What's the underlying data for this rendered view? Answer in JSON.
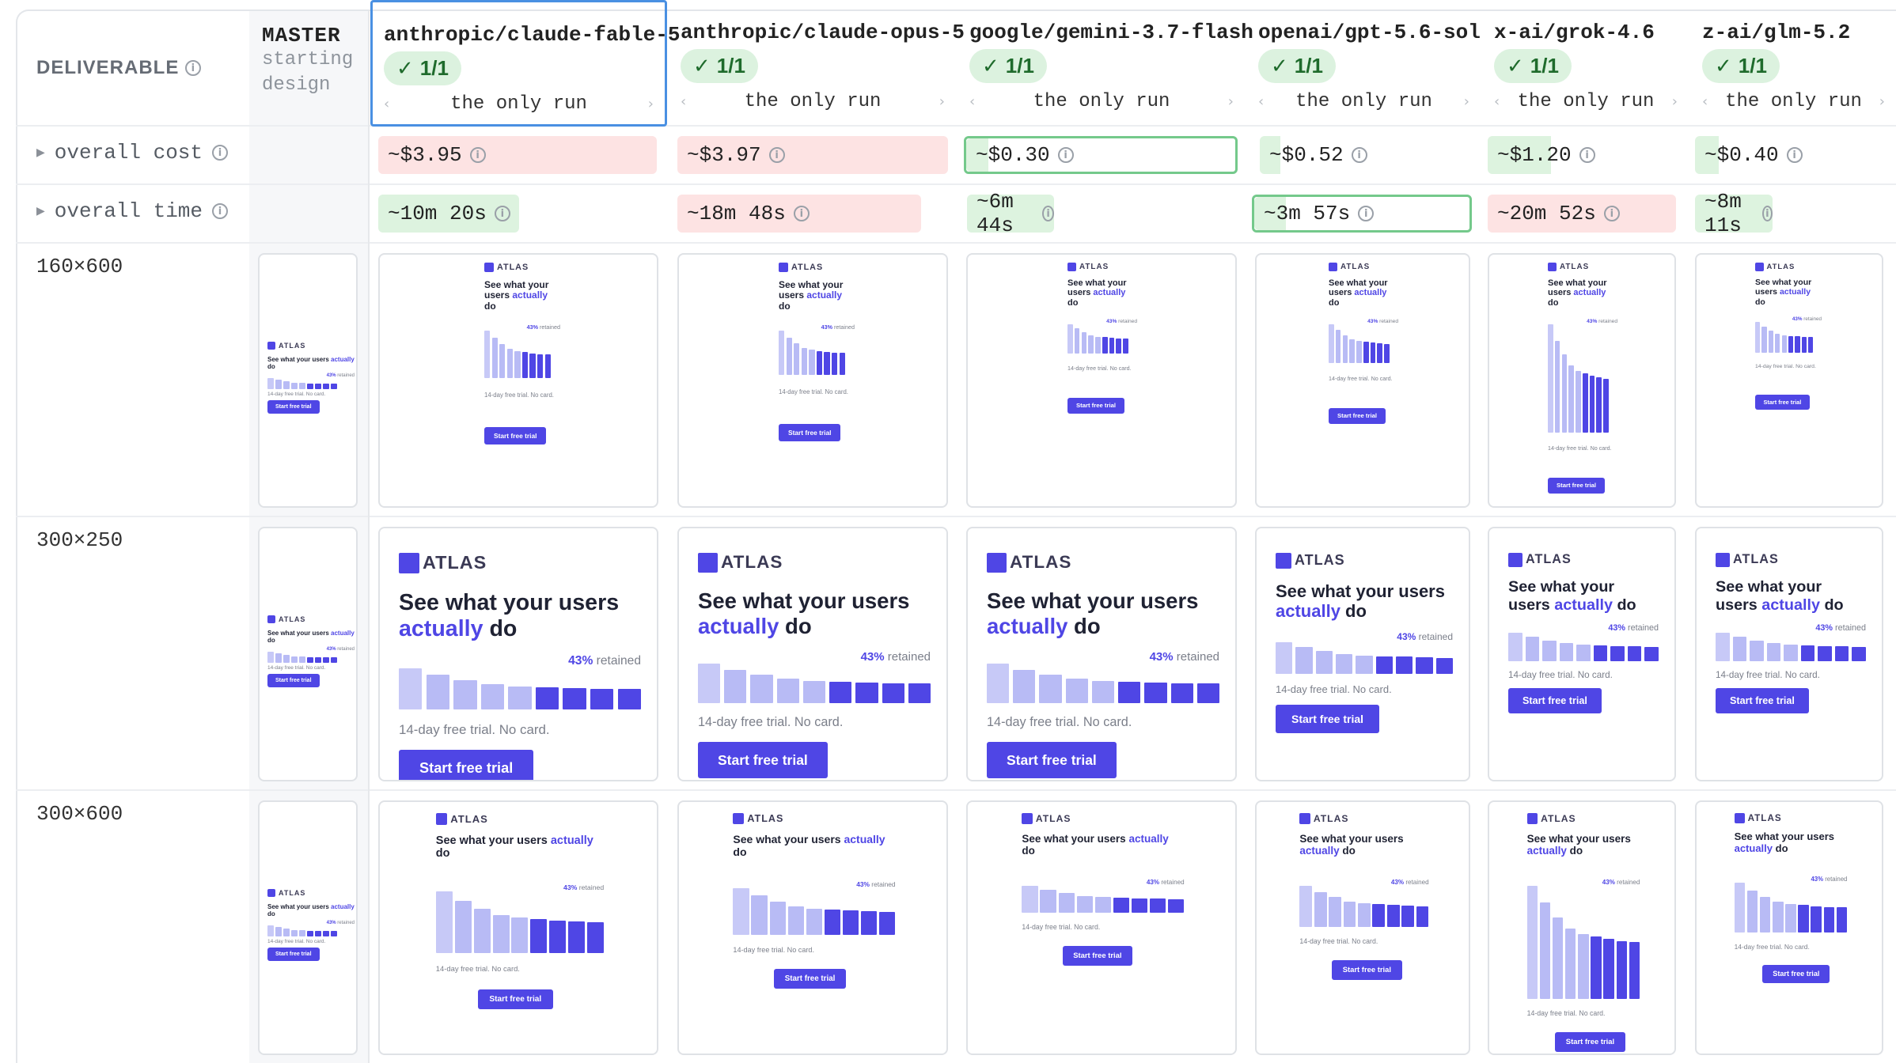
{
  "header": {
    "deliverable_label": "DELIVERABLE",
    "master_title": "MASTER",
    "master_sub1": "starting",
    "master_sub2": "design"
  },
  "models": [
    {
      "name": "anthropic/claude-fable-5",
      "badge": "1/1",
      "run": "the only run",
      "cost": "~$3.95",
      "time": "~10m 20s"
    },
    {
      "name": "anthropic/claude-opus-5",
      "badge": "1/1",
      "run": "the only run",
      "cost": "~$3.97",
      "time": "~18m 48s"
    },
    {
      "name": "google/gemini-3.7-flash",
      "badge": "1/1",
      "run": "the only run",
      "cost": "~$0.30",
      "time": "~6m 44s"
    },
    {
      "name": "openai/gpt-5.6-sol",
      "badge": "1/1",
      "run": "the only run",
      "cost": "~$0.52",
      "time": "~3m 57s"
    },
    {
      "name": "x-ai/grok-4.6",
      "badge": "1/1",
      "run": "the only run",
      "cost": "~$1.20",
      "time": "~20m 52s"
    },
    {
      "name": "z-ai/glm-5.2",
      "badge": "1/1",
      "run": "the only run",
      "cost": "~$0.40",
      "time": "~8m 11s"
    }
  ],
  "rows": {
    "cost_label": "overall cost",
    "time_label": "overall time",
    "sizes": [
      "160×600",
      "300×250",
      "300×600"
    ]
  },
  "ad": {
    "brand": "ATLAS",
    "headline_pre": "See what your users",
    "headline_acc": "actually",
    "headline_post": "do",
    "retained_value": "43%",
    "retained_word": "retained",
    "note": "14-day free trial. No card.",
    "cta": "Start free trial"
  },
  "colors": {
    "accent": "#4f46e5",
    "bar_light": "#c7c9f7",
    "good": "#ddf3df",
    "bad": "#fde3e3",
    "selected": "#4a90e2"
  }
}
